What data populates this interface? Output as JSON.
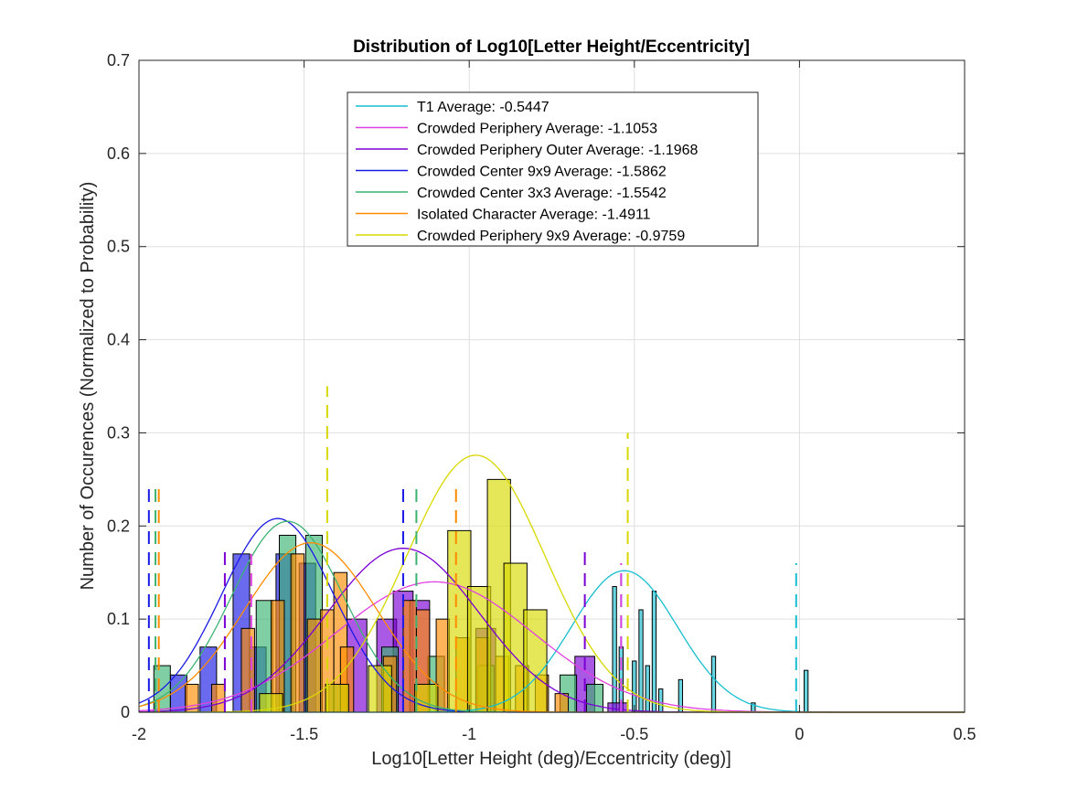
{
  "chart_data": {
    "type": "histogram",
    "title": "Distribution of Log10[Letter Height/Eccentricity]",
    "xlabel": "Log10[Letter Height (deg)/Eccentricity (deg)]",
    "ylabel": "Number of Occurences (Normalized to Probability)",
    "xlim": [
      -2,
      0.5
    ],
    "ylim": [
      0,
      0.7
    ],
    "xticks": [
      -2,
      -1.5,
      -1,
      -0.5,
      0,
      0.5
    ],
    "xtick_labels": [
      "-2",
      "-1.5",
      "-1",
      "-0.5",
      "0",
      "0.5"
    ],
    "yticks": [
      0,
      0.1,
      0.2,
      0.3,
      0.4,
      0.5,
      0.6,
      0.7
    ],
    "ytick_labels": [
      "0",
      "0.1",
      "0.2",
      "0.3",
      "0.4",
      "0.5",
      "0.6",
      "0.7"
    ],
    "grid": true,
    "legend_position": "top-center",
    "series": [
      {
        "name": "T1 Average: -0.5447",
        "color": "#17BECF",
        "mean": -0.5447,
        "fit": {
          "mu": -0.53,
          "sigma": 0.16,
          "peak": 0.152
        },
        "bins": [
          [
            -0.56,
            0.135
          ],
          [
            -0.54,
            0.07
          ],
          [
            -0.5,
            0.055
          ],
          [
            -0.48,
            0.11
          ],
          [
            -0.46,
            0.05
          ],
          [
            -0.44,
            0.13
          ],
          [
            -0.42,
            0.025
          ],
          [
            -0.36,
            0.035
          ],
          [
            -0.26,
            0.06
          ],
          [
            -0.14,
            0.01
          ],
          [
            0.02,
            0.045
          ]
        ],
        "bin_width": 0.012,
        "vlines": [
          [
            -0.54,
            0.15
          ],
          [
            -0.01,
            0.16
          ]
        ]
      },
      {
        "name": "Crowded Periphery Average: -1.1053",
        "color": "#E040E0",
        "mean": -1.1053,
        "fit": {
          "mu": -1.1053,
          "sigma": 0.3,
          "peak": 0.14
        },
        "bins": [],
        "bin_width": 0.025,
        "vlines": [
          [
            -1.66,
            0.17
          ],
          [
            -0.54,
            0.16
          ]
        ]
      },
      {
        "name": "Crowded Periphery Outer Average: -1.1968",
        "color": "#7B00D4",
        "mean": -1.1968,
        "fit": {
          "mu": -1.2,
          "sigma": 0.23,
          "peak": 0.176
        },
        "bins": [
          [
            -1.34,
            0.1
          ],
          [
            -1.25,
            0.1
          ],
          [
            -1.2,
            0.13
          ],
          [
            -1.15,
            0.12
          ],
          [
            -0.95,
            0.09
          ],
          [
            -0.65,
            0.06
          ],
          [
            -0.55,
            0.01
          ]
        ],
        "bin_width": 0.06,
        "vlines": [
          [
            -1.74,
            0.18
          ],
          [
            -0.65,
            0.18
          ]
        ]
      },
      {
        "name": "Crowded Center 9x9 Average: -1.5862",
        "color": "#1A1AE6",
        "mean": -1.5862,
        "fit": {
          "mu": -1.58,
          "sigma": 0.17,
          "peak": 0.208
        },
        "bins": [
          [
            -1.88,
            0.04
          ],
          [
            -1.79,
            0.07
          ],
          [
            -1.69,
            0.17
          ],
          [
            -1.64,
            0.07
          ],
          [
            -1.56,
            0.17
          ],
          [
            -1.49,
            0.16
          ],
          [
            -1.4,
            0.03
          ]
        ],
        "bin_width": 0.05,
        "vlines": [
          [
            -1.97,
            0.24
          ],
          [
            -1.2,
            0.24
          ]
        ]
      },
      {
        "name": "Crowded Center 3x3 Average: -1.5542",
        "color": "#3CB371",
        "mean": -1.5542,
        "fit": {
          "mu": -1.55,
          "sigma": 0.17,
          "peak": 0.205
        },
        "bins": [
          [
            -1.93,
            0.05
          ],
          [
            -1.62,
            0.12
          ],
          [
            -1.55,
            0.19
          ],
          [
            -1.47,
            0.19
          ],
          [
            -1.24,
            0.07
          ],
          [
            -1.1,
            0.06
          ],
          [
            -0.95,
            0.05
          ],
          [
            -0.7,
            0.04
          ],
          [
            -0.62,
            0.03
          ]
        ],
        "bin_width": 0.05,
        "vlines": [
          [
            -1.95,
            0.24
          ],
          [
            -1.16,
            0.24
          ]
        ]
      },
      {
        "name": "Isolated Character Average: -1.4911",
        "color": "#FF8C00",
        "mean": -1.4911,
        "fit": {
          "mu": -1.48,
          "sigma": 0.2,
          "peak": 0.182
        },
        "bins": [
          [
            -1.84,
            0.03
          ],
          [
            -1.76,
            0.03
          ],
          [
            -1.67,
            0.09
          ],
          [
            -1.58,
            0.12
          ],
          [
            -1.52,
            0.17
          ],
          [
            -1.47,
            0.1
          ],
          [
            -1.43,
            0.11
          ],
          [
            -1.39,
            0.15
          ],
          [
            -1.37,
            0.07
          ],
          [
            -1.24,
            0.06
          ],
          [
            -1.18,
            0.12
          ],
          [
            -1.14,
            0.11
          ],
          [
            -1.08,
            0.1
          ],
          [
            -1.02,
            0.08
          ],
          [
            -0.96,
            0.08
          ],
          [
            -0.9,
            0.06
          ],
          [
            -0.84,
            0.05
          ],
          [
            -0.78,
            0.04
          ],
          [
            -0.72,
            0.02
          ]
        ],
        "bin_width": 0.04,
        "vlines": [
          [
            -1.94,
            0.24
          ],
          [
            -1.04,
            0.24
          ]
        ]
      },
      {
        "name": "Crowded Periphery 9x9 Average: -0.9759",
        "color": "#D8D800",
        "mean": -0.9759,
        "fit": {
          "mu": -0.98,
          "sigma": 0.21,
          "peak": 0.276
        },
        "bins": [
          [
            -1.6,
            0.02
          ],
          [
            -1.4,
            0.03
          ],
          [
            -1.27,
            0.05
          ],
          [
            -1.13,
            0.03
          ],
          [
            -1.03,
            0.195
          ],
          [
            -0.97,
            0.135
          ],
          [
            -0.91,
            0.25
          ],
          [
            -0.86,
            0.16
          ],
          [
            -0.8,
            0.11
          ]
        ],
        "bin_width": 0.07,
        "vlines": [
          [
            -1.43,
            0.35
          ],
          [
            -0.52,
            0.3
          ]
        ]
      }
    ]
  }
}
